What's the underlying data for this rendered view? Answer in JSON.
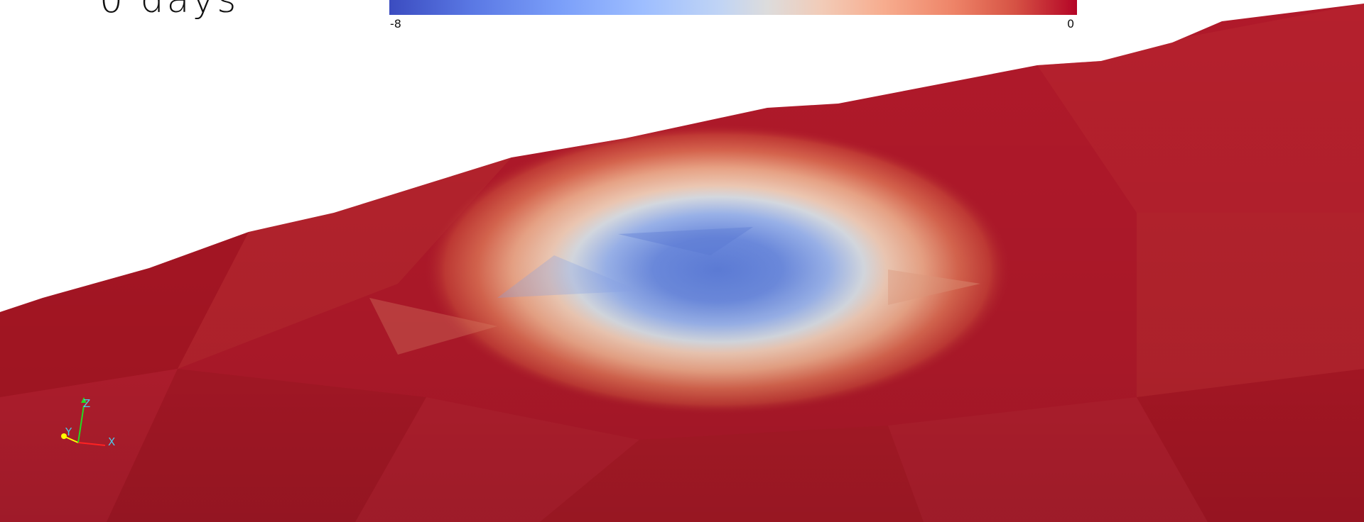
{
  "scene": {
    "time_label": "0 days",
    "field_colormap": "Cool to Warm",
    "surface_base_color": "#b0192a"
  },
  "colorbar": {
    "min_label": "-8",
    "max_label": "0",
    "min_color": "#3b4cc0",
    "mid_color": "#dddcdc",
    "max_color": "#b40426"
  },
  "orientation_axes": {
    "x_label": "X",
    "y_label": "Y",
    "z_label": "Z",
    "x_color": "#ff2222",
    "y_color": "#ffff00",
    "z_color": "#22dd22",
    "label_color": "#4fc8e8"
  }
}
